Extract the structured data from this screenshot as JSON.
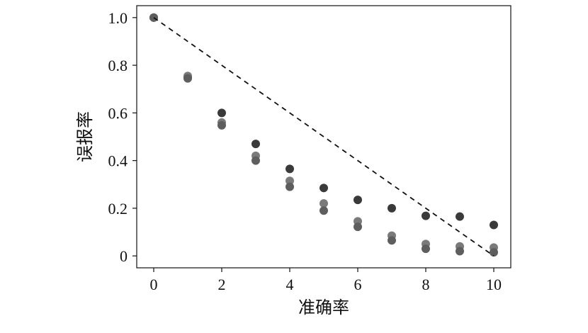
{
  "chart_data": {
    "type": "scatter",
    "title": "",
    "xlabel": "准确率",
    "ylabel": "误报率",
    "xlim": [
      -0.5,
      10.5
    ],
    "ylim": [
      -0.05,
      1.05
    ],
    "x_ticks": [
      0,
      2,
      4,
      6,
      8,
      10
    ],
    "x_tick_labels": [
      "0",
      "2",
      "4",
      "6",
      "8",
      "10"
    ],
    "y_ticks": [
      0,
      0.2,
      0.4,
      0.6,
      0.8,
      1.0
    ],
    "y_tick_labels": [
      "0",
      "0.2",
      "0.4",
      "0.6",
      "0.8",
      "1.0"
    ],
    "grid": false,
    "series": [
      {
        "style": "scatter",
        "color": "#3a3a3a",
        "x": [
          0,
          1,
          2,
          3,
          4,
          5,
          6,
          7,
          8,
          9,
          10
        ],
        "y": [
          1.0,
          0.75,
          0.6,
          0.47,
          0.365,
          0.285,
          0.235,
          0.2,
          0.168,
          0.165,
          0.13
        ]
      },
      {
        "style": "scatter",
        "color": "#7a7a7a",
        "x": [
          0,
          1,
          2,
          3,
          4,
          5,
          6,
          7,
          8,
          9,
          10
        ],
        "y": [
          1.0,
          0.755,
          0.56,
          0.42,
          0.315,
          0.22,
          0.145,
          0.085,
          0.05,
          0.04,
          0.035
        ]
      },
      {
        "style": "scatter",
        "color": "#5e5e5e",
        "x": [
          0,
          1,
          2,
          3,
          4,
          5,
          6,
          7,
          8,
          9,
          10
        ],
        "y": [
          1.0,
          0.745,
          0.548,
          0.4,
          0.29,
          0.19,
          0.122,
          0.065,
          0.03,
          0.02,
          0.015
        ]
      },
      {
        "style": "dashed-line",
        "color": "#111111",
        "x": [
          0,
          10
        ],
        "y": [
          1.0,
          0.0
        ]
      }
    ]
  }
}
